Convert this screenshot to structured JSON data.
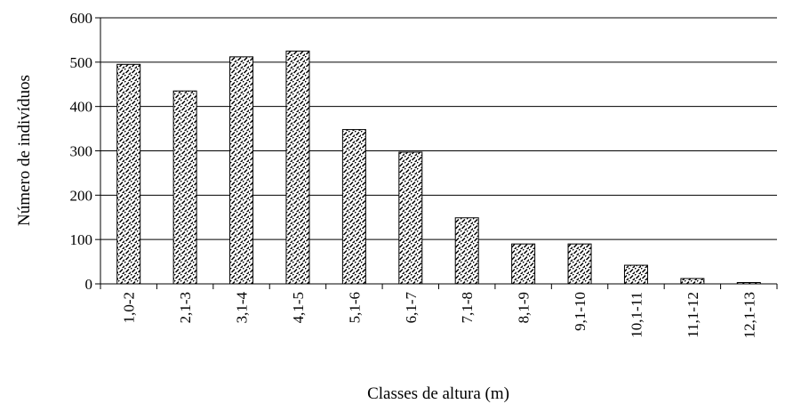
{
  "chart_data": {
    "type": "bar",
    "categories": [
      "1,0-2",
      "2,1-3",
      "3,1-4",
      "4,1-5",
      "5,1-6",
      "6,1-7",
      "7,1-8",
      "8,1-9",
      "9,1-10",
      "10,1-11",
      "11,1-12",
      "12,1-13"
    ],
    "values": [
      495,
      435,
      512,
      525,
      348,
      297,
      149,
      90,
      90,
      42,
      12,
      3
    ],
    "xlabel": "Classes de altura (m)",
    "ylabel": "Número de indivíduos",
    "ylim": [
      0,
      600
    ],
    "yticks": [
      "0",
      "100",
      "200",
      "300",
      "400",
      "500",
      "600"
    ],
    "grid": true,
    "bar_fill": "hatched"
  }
}
